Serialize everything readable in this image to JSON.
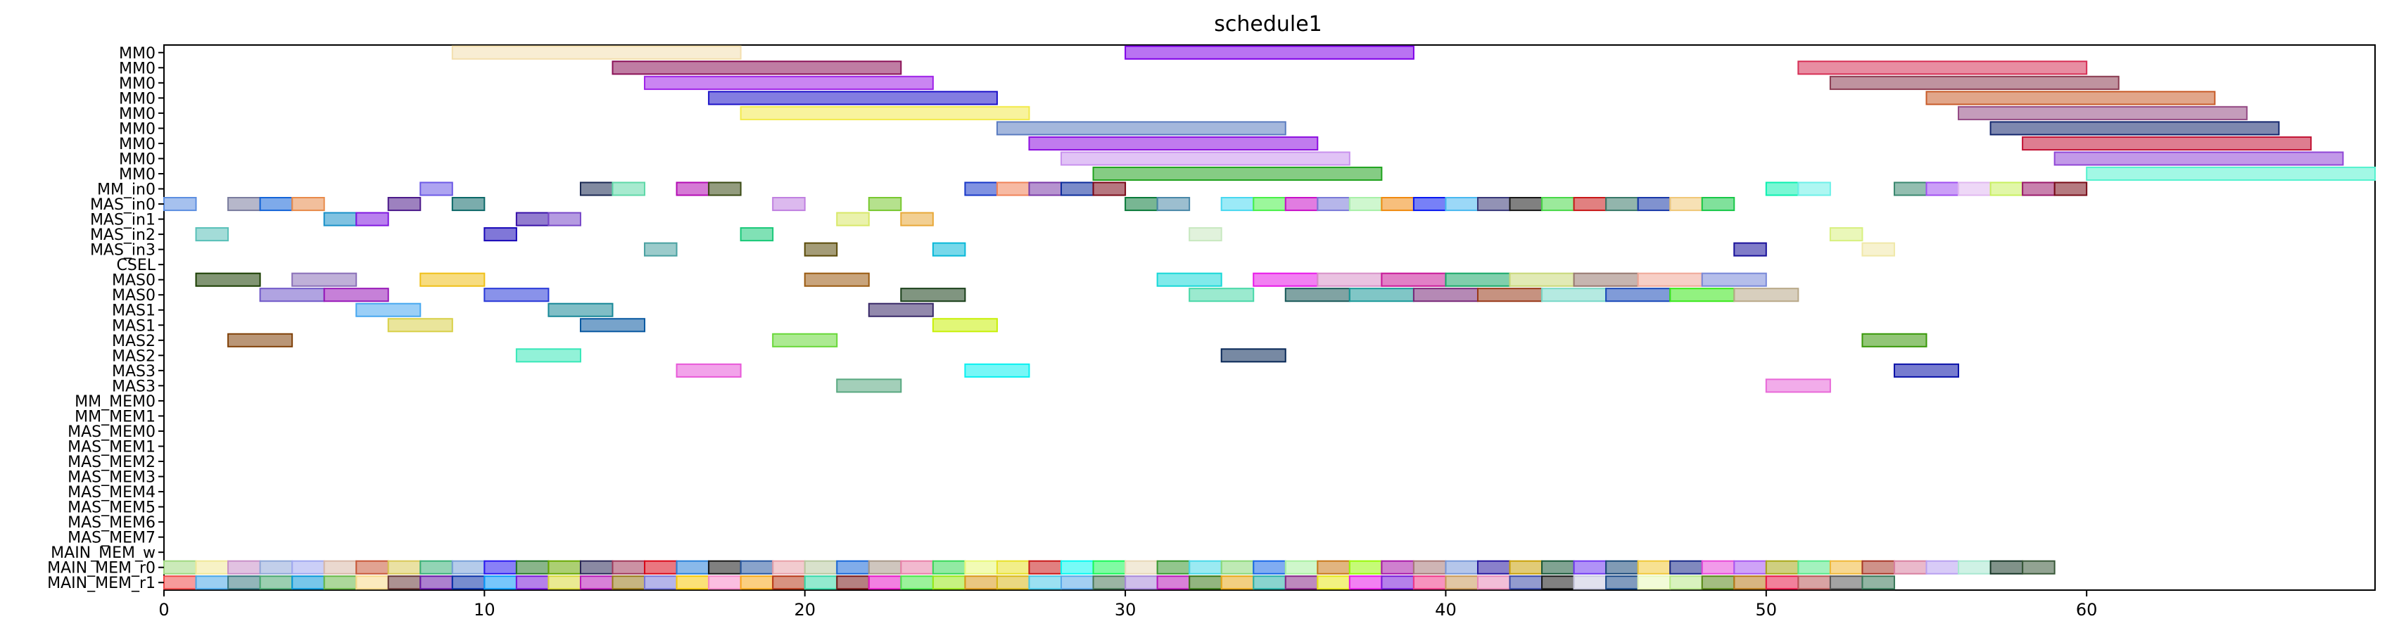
{
  "chart_data": {
    "type": "gantt",
    "title": "schedule1",
    "xlabel": "",
    "ylabel": "",
    "xlim": [
      0,
      69
    ],
    "x_ticks": [
      0,
      10,
      20,
      30,
      40,
      50,
      60
    ],
    "grid": false,
    "rows": [
      "MM0",
      "MM0",
      "MM0",
      "MM0",
      "MM0",
      "MM0",
      "MM0",
      "MM0",
      "MM0",
      "MM_in0",
      "MAS_in0",
      "MAS_in1",
      "MAS_in2",
      "MAS_in3",
      "CSEL",
      "MAS0",
      "MAS0",
      "MAS1",
      "MAS1",
      "MAS2",
      "MAS2",
      "MAS3",
      "MAS3",
      "MM_MEM0",
      "MM_MEM1",
      "MAS_MEM0",
      "MAS_MEM1",
      "MAS_MEM2",
      "MAS_MEM3",
      "MAS_MEM4",
      "MAS_MEM5",
      "MAS_MEM6",
      "MAS_MEM7",
      "MAIN_MEM_w",
      "MAIN_MEM_r0",
      "MAIN_MEM_r1"
    ],
    "bars": [
      {
        "row": 0,
        "start": 9,
        "end": 18,
        "color": "#f3dfae"
      },
      {
        "row": 0,
        "start": 30,
        "end": 39,
        "color": "#7f00e8"
      },
      {
        "row": 1,
        "start": 14,
        "end": 23,
        "color": "#8b1258"
      },
      {
        "row": 1,
        "start": 51,
        "end": 60,
        "color": "#d62f55"
      },
      {
        "row": 2,
        "start": 15,
        "end": 24,
        "color": "#9f21e8"
      },
      {
        "row": 2,
        "start": 52,
        "end": 61,
        "color": "#8a3a50"
      },
      {
        "row": 3,
        "start": 17,
        "end": 26,
        "color": "#1d13c9"
      },
      {
        "row": 3,
        "start": 55,
        "end": 64,
        "color": "#c85c2a"
      },
      {
        "row": 4,
        "start": 18,
        "end": 27,
        "color": "#f2ea4c"
      },
      {
        "row": 4,
        "start": 56,
        "end": 65,
        "color": "#944a84"
      },
      {
        "row": 5,
        "start": 26,
        "end": 35,
        "color": "#5a7cc0"
      },
      {
        "row": 5,
        "start": 57,
        "end": 66,
        "color": "#14276e"
      },
      {
        "row": 6,
        "start": 27,
        "end": 36,
        "color": "#8d0ee0"
      },
      {
        "row": 6,
        "start": 58,
        "end": 67,
        "color": "#c21334"
      },
      {
        "row": 7,
        "start": 28,
        "end": 37,
        "color": "#c891ee"
      },
      {
        "row": 7,
        "start": 59,
        "end": 68,
        "color": "#9046d6"
      },
      {
        "row": 8,
        "start": 29,
        "end": 38,
        "color": "#21a31f"
      },
      {
        "row": 8,
        "start": 60,
        "end": 69,
        "color": "#55f2cf"
      },
      {
        "row": 9,
        "start": 8,
        "end": 9,
        "color": "#6c5ae6"
      },
      {
        "row": 9,
        "start": 13,
        "end": 14,
        "color": "#1a2952"
      },
      {
        "row": 9,
        "start": 14,
        "end": 15,
        "color": "#5fd8a8"
      },
      {
        "row": 9,
        "start": 16,
        "end": 17,
        "color": "#b30cb3"
      },
      {
        "row": 9,
        "start": 17,
        "end": 18,
        "color": "#3a4a14"
      },
      {
        "row": 9,
        "start": 25,
        "end": 26,
        "color": "#1838c8"
      },
      {
        "row": 9,
        "start": 26,
        "end": 27,
        "color": "#f08258"
      },
      {
        "row": 9,
        "start": 27,
        "end": 28,
        "color": "#7a3aa8"
      },
      {
        "row": 9,
        "start": 28,
        "end": 29,
        "color": "#0c2c9c"
      },
      {
        "row": 9,
        "start": 29,
        "end": 30,
        "color": "#7a0818"
      },
      {
        "row": 9,
        "start": 50,
        "end": 51,
        "color": "#0cf0b0"
      },
      {
        "row": 9,
        "start": 51,
        "end": 52,
        "color": "#6cf0e8"
      },
      {
        "row": 9,
        "start": 54,
        "end": 55,
        "color": "#3a8870"
      },
      {
        "row": 9,
        "start": 55,
        "end": 56,
        "color": "#a050f0"
      },
      {
        "row": 9,
        "start": 56,
        "end": 57,
        "color": "#e0b8f0"
      },
      {
        "row": 9,
        "start": 57,
        "end": 58,
        "color": "#c8f060"
      },
      {
        "row": 9,
        "start": 58,
        "end": 59,
        "color": "#9a1a6a"
      },
      {
        "row": 9,
        "start": 59,
        "end": 60,
        "color": "#780c18"
      },
      {
        "row": 10,
        "start": 0,
        "end": 1,
        "color": "#5c8ee0"
      },
      {
        "row": 10,
        "start": 2,
        "end": 3,
        "color": "#7a7c9e"
      },
      {
        "row": 10,
        "start": 3,
        "end": 4,
        "color": "#1464d8"
      },
      {
        "row": 10,
        "start": 4,
        "end": 5,
        "color": "#e88a4a"
      },
      {
        "row": 10,
        "start": 7,
        "end": 8,
        "color": "#4c1a8a"
      },
      {
        "row": 10,
        "start": 9,
        "end": 10,
        "color": "#0c6868"
      },
      {
        "row": 10,
        "start": 19,
        "end": 20,
        "color": "#c080e0"
      },
      {
        "row": 10,
        "start": 22,
        "end": 23,
        "color": "#78c830"
      },
      {
        "row": 10,
        "start": 30,
        "end": 31,
        "color": "#0a7a3a"
      },
      {
        "row": 10,
        "start": 31,
        "end": 32,
        "color": "#4a88a8"
      },
      {
        "row": 10,
        "start": 33,
        "end": 34,
        "color": "#48d8f0"
      },
      {
        "row": 10,
        "start": 34,
        "end": 35,
        "color": "#48f048"
      },
      {
        "row": 10,
        "start": 35,
        "end": 36,
        "color": "#c810c8"
      },
      {
        "row": 10,
        "start": 36,
        "end": 37,
        "color": "#7a7ad8"
      },
      {
        "row": 10,
        "start": 37,
        "end": 38,
        "color": "#a8f0a8"
      },
      {
        "row": 10,
        "start": 38,
        "end": 39,
        "color": "#f08a10"
      },
      {
        "row": 10,
        "start": 39,
        "end": 40,
        "color": "#0818f0"
      },
      {
        "row": 10,
        "start": 40,
        "end": 41,
        "color": "#48b8f0"
      },
      {
        "row": 10,
        "start": 41,
        "end": 42,
        "color": "#383878"
      },
      {
        "row": 10,
        "start": 42,
        "end": 43,
        "color": "#181818"
      },
      {
        "row": 10,
        "start": 43,
        "end": 44,
        "color": "#48d848"
      },
      {
        "row": 10,
        "start": 44,
        "end": 45,
        "color": "#c81818"
      },
      {
        "row": 10,
        "start": 45,
        "end": 46,
        "color": "#387868"
      },
      {
        "row": 10,
        "start": 46,
        "end": 47,
        "color": "#1838a8"
      },
      {
        "row": 10,
        "start": 47,
        "end": 48,
        "color": "#f0c878"
      },
      {
        "row": 10,
        "start": 48,
        "end": 49,
        "color": "#18c848"
      },
      {
        "row": 11,
        "start": 5,
        "end": 6,
        "color": "#1890c8"
      },
      {
        "row": 11,
        "start": 6,
        "end": 7,
        "color": "#8018e0"
      },
      {
        "row": 11,
        "start": 11,
        "end": 12,
        "color": "#3810a8"
      },
      {
        "row": 11,
        "start": 12,
        "end": 13,
        "color": "#7848c8"
      },
      {
        "row": 11,
        "start": 21,
        "end": 22,
        "color": "#d8e868"
      },
      {
        "row": 11,
        "start": 23,
        "end": 24,
        "color": "#e8a838"
      },
      {
        "row": 12,
        "start": 1,
        "end": 2,
        "color": "#58c0b8"
      },
      {
        "row": 12,
        "start": 10,
        "end": 11,
        "color": "#1808b8"
      },
      {
        "row": 12,
        "start": 18,
        "end": 19,
        "color": "#18c878"
      },
      {
        "row": 12,
        "start": 32,
        "end": 33,
        "color": "#c8e8c0"
      },
      {
        "row": 12,
        "start": 52,
        "end": 53,
        "color": "#d8f080"
      },
      {
        "row": 13,
        "start": 15,
        "end": 16,
        "color": "#48a0a0"
      },
      {
        "row": 13,
        "start": 20,
        "end": 21,
        "color": "#5a4a08"
      },
      {
        "row": 13,
        "start": 24,
        "end": 25,
        "color": "#08b8d8"
      },
      {
        "row": 13,
        "start": 49,
        "end": 50,
        "color": "#18109a"
      },
      {
        "row": 13,
        "start": 53,
        "end": 54,
        "color": "#f0e8a8"
      },
      {
        "row": 15,
        "start": 1,
        "end": 3,
        "color": "#1a3e00"
      },
      {
        "row": 15,
        "start": 4,
        "end": 6,
        "color": "#8a70b8"
      },
      {
        "row": 15,
        "start": 8,
        "end": 10,
        "color": "#f0c018"
      },
      {
        "row": 15,
        "start": 20,
        "end": 22,
        "color": "#9a5a10"
      },
      {
        "row": 15,
        "start": 31,
        "end": 33,
        "color": "#18d8d8"
      },
      {
        "row": 15,
        "start": 34,
        "end": 36,
        "color": "#e818e8"
      },
      {
        "row": 15,
        "start": 36,
        "end": 38,
        "color": "#d890c8"
      },
      {
        "row": 15,
        "start": 38,
        "end": 40,
        "color": "#c81898"
      },
      {
        "row": 15,
        "start": 40,
        "end": 42,
        "color": "#18a868"
      },
      {
        "row": 15,
        "start": 42,
        "end": 44,
        "color": "#c8d878"
      },
      {
        "row": 15,
        "start": 44,
        "end": 46,
        "color": "#987870"
      },
      {
        "row": 15,
        "start": 46,
        "end": 48,
        "color": "#f0a898"
      },
      {
        "row": 15,
        "start": 48,
        "end": 50,
        "color": "#7888d8"
      },
      {
        "row": 16,
        "start": 3,
        "end": 5,
        "color": "#7058c8"
      },
      {
        "row": 16,
        "start": 5,
        "end": 7,
        "color": "#9818b8"
      },
      {
        "row": 16,
        "start": 10,
        "end": 12,
        "color": "#2838d8"
      },
      {
        "row": 16,
        "start": 23,
        "end": 25,
        "color": "#183e18"
      },
      {
        "row": 16,
        "start": 32,
        "end": 34,
        "color": "#48d8a8"
      },
      {
        "row": 16,
        "start": 35,
        "end": 37,
        "color": "#185858"
      },
      {
        "row": 16,
        "start": 37,
        "end": 39,
        "color": "#189898"
      },
      {
        "row": 16,
        "start": 39,
        "end": 41,
        "color": "#782878"
      },
      {
        "row": 16,
        "start": 41,
        "end": 43,
        "color": "#983818"
      },
      {
        "row": 16,
        "start": 43,
        "end": 45,
        "color": "#78d8c8"
      },
      {
        "row": 16,
        "start": 45,
        "end": 47,
        "color": "#1848b8"
      },
      {
        "row": 16,
        "start": 47,
        "end": 49,
        "color": "#38e818"
      },
      {
        "row": 16,
        "start": 49,
        "end": 51,
        "color": "#b8a888"
      },
      {
        "row": 17,
        "start": 6,
        "end": 8,
        "color": "#48a8f0"
      },
      {
        "row": 17,
        "start": 12,
        "end": 14,
        "color": "#188898"
      },
      {
        "row": 17,
        "start": 22,
        "end": 24,
        "color": "#382868"
      },
      {
        "row": 18,
        "start": 7,
        "end": 9,
        "color": "#d8d048"
      },
      {
        "row": 18,
        "start": 13,
        "end": 15,
        "color": "#0858a0"
      },
      {
        "row": 18,
        "start": 24,
        "end": 26,
        "color": "#c8f008"
      },
      {
        "row": 19,
        "start": 2,
        "end": 4,
        "color": "#804008"
      },
      {
        "row": 19,
        "start": 19,
        "end": 21,
        "color": "#68d838"
      },
      {
        "row": 19,
        "start": 53,
        "end": 55,
        "color": "#389808"
      },
      {
        "row": 20,
        "start": 11,
        "end": 13,
        "color": "#38e8b8"
      },
      {
        "row": 20,
        "start": 33,
        "end": 35,
        "color": "#082858"
      },
      {
        "row": 21,
        "start": 16,
        "end": 18,
        "color": "#e858d8"
      },
      {
        "row": 21,
        "start": 25,
        "end": 27,
        "color": "#08f0f0"
      },
      {
        "row": 21,
        "start": 54,
        "end": 56,
        "color": "#0810a8"
      },
      {
        "row": 22,
        "start": 21,
        "end": 23,
        "color": "#58a880"
      },
      {
        "row": 22,
        "start": 50,
        "end": 52,
        "color": "#e868d8"
      }
    ],
    "memory_bars": [
      {
        "row": 34,
        "colors": [
          "#a0d880",
          "#f0e898",
          "#c890c8",
          "#90a8d8",
          "#a0a8f0",
          "#d8b8a8",
          "#c85838",
          "#d8c858",
          "#38b078",
          "#78a0d8",
          "#2818f0",
          "#28782a",
          "#68a800",
          "#2a2858",
          "#a0385a",
          "#d80818",
          "#2880d8",
          "#181818",
          "#2858a0",
          "#e8a0a8",
          "#b8c8a0",
          "#1868d8",
          "#a89888",
          "#e880a8",
          "#38d858",
          "#e8f878",
          "#e8e028",
          "#c81818",
          "#08f8f0",
          "#18f858",
          "#e8d8b8",
          "#389830",
          "#48d8e8",
          "#8ad878",
          "#1868e8",
          "#a8f0a0",
          "#c87818",
          "#98f808",
          "#a818a8",
          "#a87878",
          "#7898d8",
          "#2818a0",
          "#c8a008",
          "#185838",
          "#7038f0",
          "#184878",
          "#f0c838",
          "#182888",
          "#e848d8",
          "#a858f0",
          "#a8a818",
          "#58e888",
          "#f0b838",
          "#a83828",
          "#d880a0",
          "#b8a0f0",
          "#a8e8d0",
          "#183828",
          "#385838"
        ]
      },
      {
        "row": 35,
        "colors": [
          "#f04848",
          "#48a8e8",
          "#387880",
          "#48a870",
          "#0898d8",
          "#68b848",
          "#f8d888",
          "#683838",
          "#6818a8",
          "#0830a8",
          "#0898f8",
          "#7818d8",
          "#d8d838",
          "#b818b8",
          "#987818",
          "#7878d8",
          "#f8c808",
          "#f888c8",
          "#f8a818",
          "#b83818",
          "#38d8a8",
          "#781818",
          "#e818c8",
          "#48e848",
          "#98e818",
          "#d89818",
          "#d8b818",
          "#48c8e8",
          "#58a8e8",
          "#487858",
          "#a888d8",
          "#b818b8",
          "#387818",
          "#e8a818",
          "#28b0a8",
          "#882888",
          "#e8e818",
          "#e818e8",
          "#7818d8",
          "#f03888",
          "#c89858",
          "#e888b8",
          "#3848a8",
          "#181818",
          "#c8c8e0",
          "#184888",
          "#e8f8b8",
          "#b8e888",
          "#588818",
          "#b87818",
          "#e81848",
          "#b85858",
          "#585858",
          "#387858"
        ]
      }
    ]
  }
}
